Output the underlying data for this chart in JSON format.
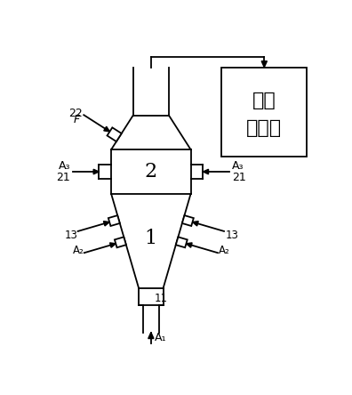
{
  "bg_color": "#ffffff",
  "line_color": "#000000",
  "box_reactor_text_1": "粉体",
  "box_reactor_text_2": "反应器",
  "label_1": "1",
  "label_2": "2",
  "label_F": "F",
  "label_22": "22",
  "label_A3_left": "A₃",
  "label_21_left": "21",
  "label_A3_right": "A₃",
  "label_21_right": "21",
  "label_A2_left": "A₂",
  "label_13_left": "13",
  "label_A2_right": "A₂",
  "label_13_right": "13",
  "label_11": "11",
  "label_A1": "A₁"
}
